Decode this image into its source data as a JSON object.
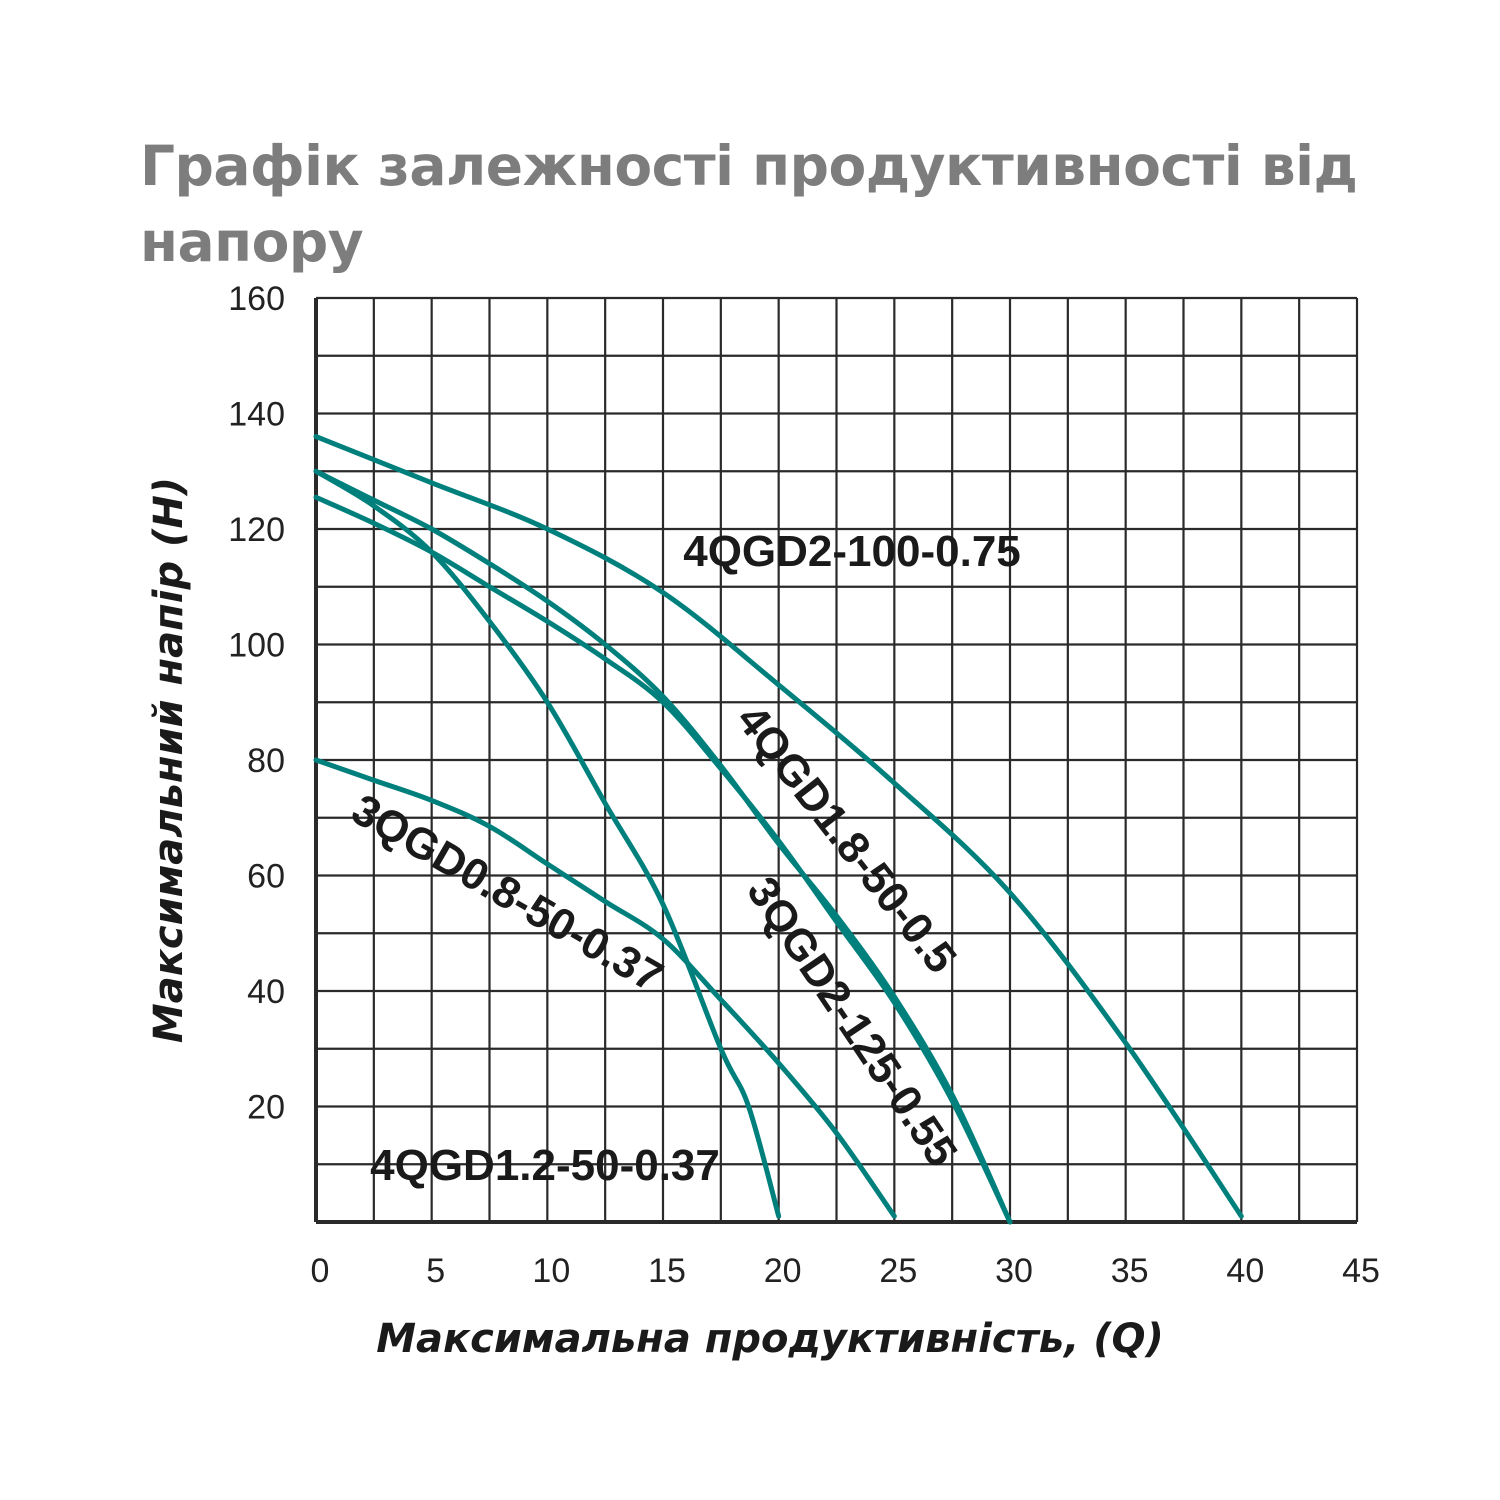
{
  "chart_data": {
    "type": "line",
    "title": "Графік залежності продуктивності від напору",
    "xlabel": "Максимальна продуктивність, (Q)",
    "ylabel": "Максимальний напір (H)",
    "xlim": [
      0,
      45
    ],
    "ylim": [
      0,
      160
    ],
    "x_ticks": [
      "0",
      "5",
      "10",
      "15",
      "20",
      "25",
      "30",
      "35",
      "40",
      "45"
    ],
    "y_ticks": [
      "20",
      "40",
      "60",
      "80",
      "100",
      "120",
      "140",
      "160"
    ],
    "grid": true,
    "grid_x_step": 2.5,
    "grid_y_step": 10,
    "line_color": "#00807c",
    "series": [
      {
        "name": "4QGD2-100-0.75",
        "x": [
          0,
          5,
          10,
          15,
          20,
          25,
          30,
          35,
          40
        ],
        "y": [
          136,
          128,
          120,
          109,
          93,
          76,
          57,
          31,
          1
        ]
      },
      {
        "name": "4QGD1.8-50-0.5",
        "x": [
          0,
          2.5,
          5,
          7.5,
          10,
          12.5,
          15,
          17.5,
          20,
          22.5,
          25,
          27.5,
          30
        ],
        "y": [
          130,
          125,
          120,
          114,
          107.5,
          100,
          91,
          79,
          65.5,
          53,
          39,
          22,
          0
        ]
      },
      {
        "name": "3QGD2-125-0.55",
        "x": [
          0,
          2.5,
          5,
          7.5,
          10,
          12.5,
          15,
          17.5,
          20,
          22.5,
          25,
          27.5,
          30
        ],
        "y": [
          125.5,
          121,
          116,
          110,
          104,
          97.5,
          90,
          78.5,
          66,
          52,
          38,
          21,
          0
        ]
      },
      {
        "name": "3QGD0.8-50-0.37",
        "x": [
          0,
          2.5,
          5,
          7.5,
          10,
          12.5,
          15,
          17.5,
          18.7,
          20
        ],
        "y": [
          130,
          124,
          116,
          104,
          90,
          72.5,
          55,
          30,
          20,
          1
        ]
      },
      {
        "name": "4QGD1.2-50-0.37",
        "x": [
          0,
          2.5,
          5,
          7.5,
          10,
          12.5,
          15,
          17.5,
          20,
          22.5,
          25
        ],
        "y": [
          80,
          76.5,
          73,
          68.5,
          62,
          55.5,
          49,
          38.5,
          27.5,
          15.4,
          1
        ]
      }
    ]
  }
}
